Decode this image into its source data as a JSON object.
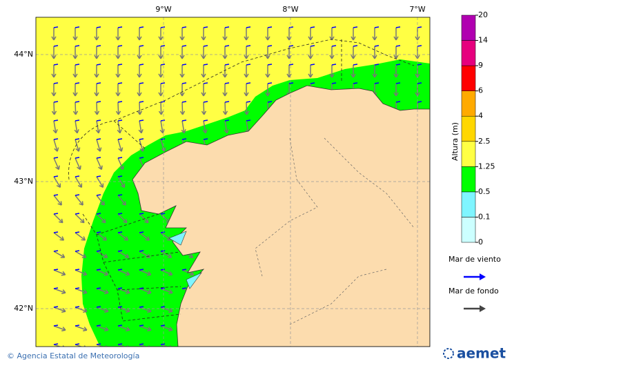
{
  "map": {
    "lon_grid": [
      {
        "value": -9,
        "label": "9°W"
      },
      {
        "value": -8,
        "label": "8°W"
      },
      {
        "value": -7,
        "label": "7°W"
      }
    ],
    "lat_grid": [
      {
        "value": 44,
        "label": "44°N"
      },
      {
        "value": 43,
        "label": "43°N"
      },
      {
        "value": 42,
        "label": "42°N"
      }
    ]
  },
  "colorbar": {
    "title": "Altura (m)",
    "levels": [
      0,
      0.1,
      0.5,
      1.25,
      2.5,
      4,
      6,
      9,
      14,
      20
    ],
    "colors": [
      "#ccffff",
      "#7ff5ff",
      "#00ff00",
      "#ffff44",
      "#ffd700",
      "#ffaa00",
      "#ff0000",
      "#e6007e",
      "#b000b0"
    ]
  },
  "legend": [
    {
      "label": "Mar de viento",
      "color": "#0000ff"
    },
    {
      "label": "Mar de fondo",
      "color": "#444444"
    }
  ],
  "footer": {
    "credit": "© Agencia Estatal de Meteorología",
    "logo": "aemet"
  }
}
